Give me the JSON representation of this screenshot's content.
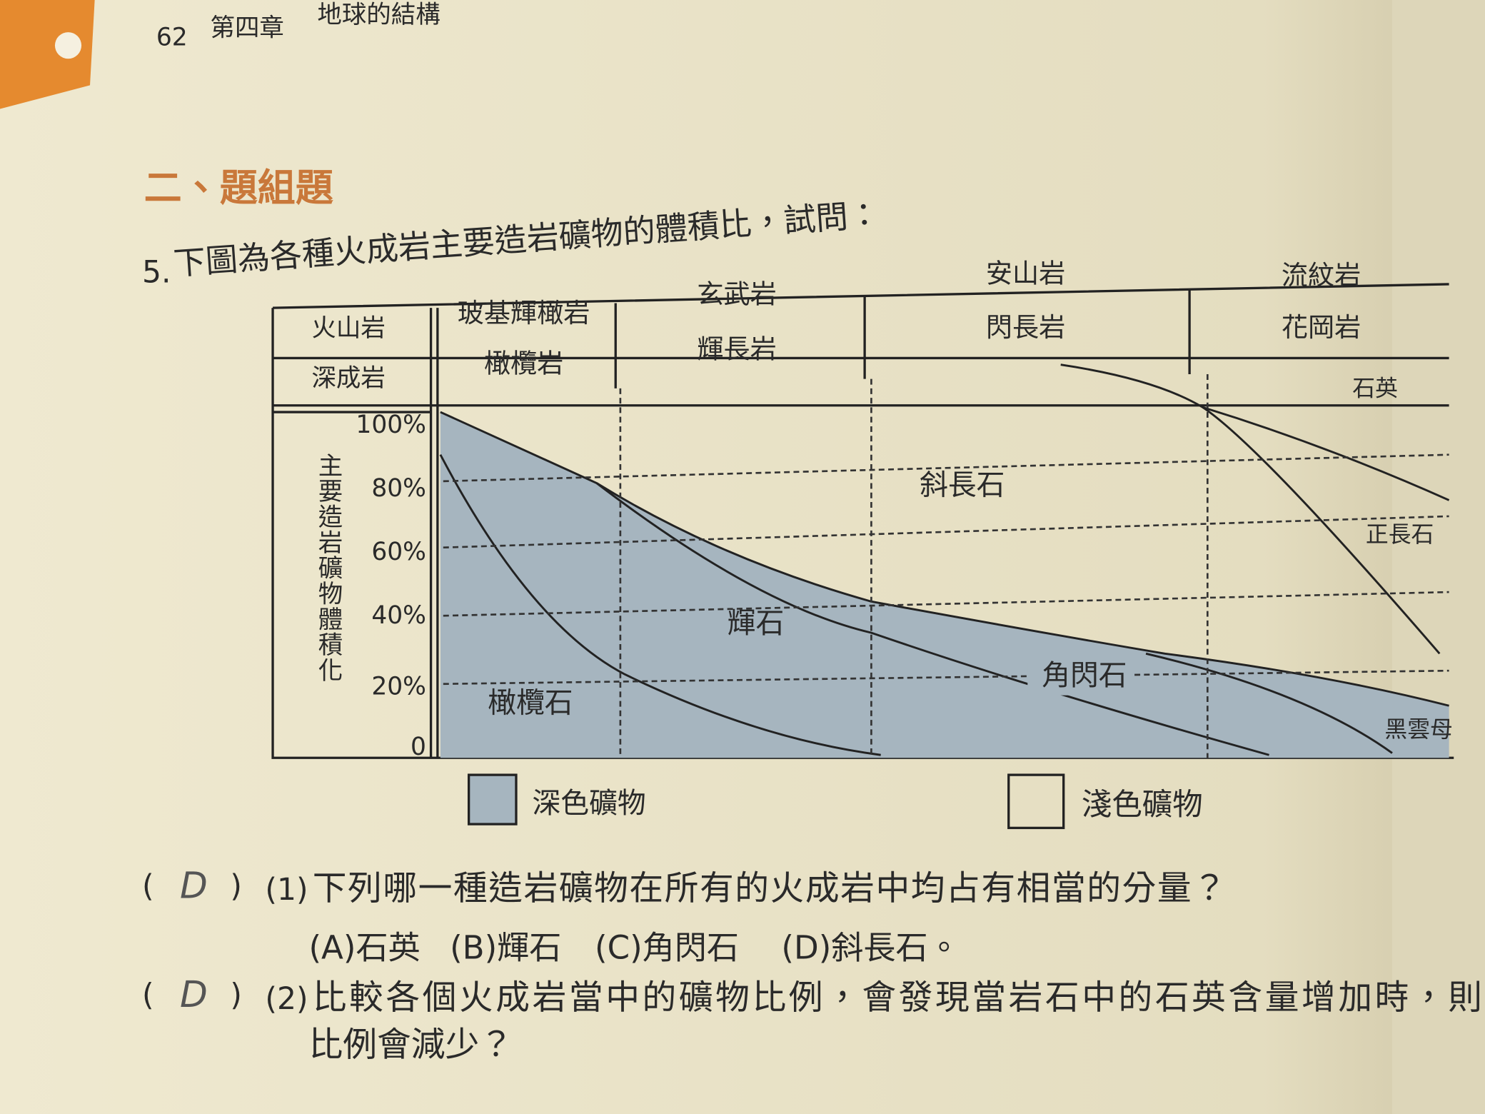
{
  "header": {
    "page": "62",
    "chapter": "第四章",
    "title": "地球的結構"
  },
  "section": "二、題組題",
  "question": {
    "number": "5.",
    "text": "下圖為各種火成岩主要造岩礦物的體積比，試問："
  },
  "diagram": {
    "row_labels": [
      "火山岩",
      "深成岩"
    ],
    "columns": [
      {
        "volcanic": "玻基輝橄岩",
        "plutonic": "橄欖岩"
      },
      {
        "volcanic": "玄武岩",
        "plutonic": "輝長岩"
      },
      {
        "volcanic": "安山岩",
        "plutonic": "閃長岩"
      },
      {
        "volcanic": "流紋岩",
        "plutonic": "花岡岩"
      }
    ],
    "y_label": "主要造岩礦物體積化",
    "y_ticks": [
      "100%",
      "80%",
      "60%",
      "40%",
      "20%",
      "0"
    ],
    "minerals": {
      "quartz": "石英",
      "plagioclase": "斜長石",
      "orthoclase": "正長石",
      "pyroxene": "輝石",
      "amphibole": "角閃石",
      "olivine": "橄欖石",
      "biotite": "黑雲母"
    },
    "legend": [
      "深色礦物",
      "淺色礦物"
    ]
  },
  "subquestions": [
    {
      "answer": "D",
      "number": "(1)",
      "text": "下列哪一種造岩礦物在所有的火成岩中均占有相當的分量？",
      "options": [
        "(A)石英",
        "(B)輝石",
        "(C)角閃石",
        "(D)斜長石。"
      ]
    },
    {
      "answer": "D",
      "number": "(2)",
      "text": "比較各個火成岩當中的礦物比例，會發現當岩石中的石英含量增加時，則",
      "text2": "比例會減少？"
    }
  ]
}
